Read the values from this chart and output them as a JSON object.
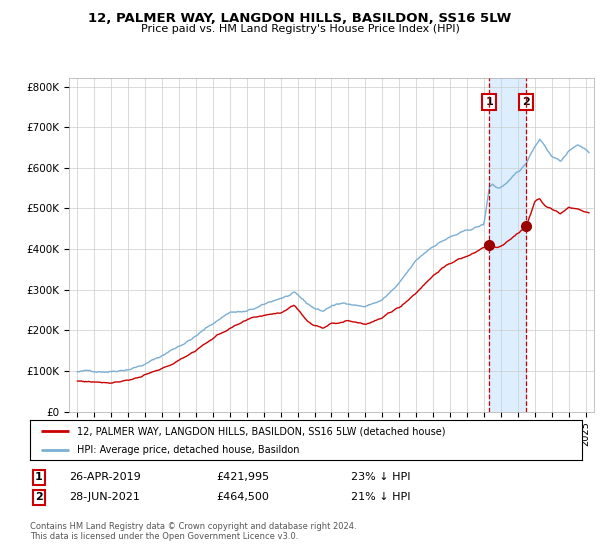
{
  "title": "12, PALMER WAY, LANGDON HILLS, BASILDON, SS16 5LW",
  "subtitle": "Price paid vs. HM Land Registry's House Price Index (HPI)",
  "legend_line1": "12, PALMER WAY, LANGDON HILLS, BASILDON, SS16 5LW (detached house)",
  "legend_line2": "HPI: Average price, detached house, Basildon",
  "annotation1_date": "26-APR-2019",
  "annotation1_price": "£421,995",
  "annotation1_hpi": "23% ↓ HPI",
  "annotation1_year": 2019.32,
  "annotation1_value": 421995,
  "annotation2_date": "28-JUN-2021",
  "annotation2_price": "£464,500",
  "annotation2_hpi": "21% ↓ HPI",
  "annotation2_year": 2021.49,
  "annotation2_value": 464500,
  "footer": "Contains HM Land Registry data © Crown copyright and database right 2024.\nThis data is licensed under the Open Government Licence v3.0.",
  "red_color": "#cc0000",
  "blue_color": "#7bafd4",
  "bg_shade_color": "#ddeeff",
  "ylim": [
    0,
    820000
  ],
  "yticks": [
    0,
    100000,
    200000,
    300000,
    400000,
    500000,
    600000,
    700000,
    800000
  ],
  "ytick_labels": [
    "£0",
    "£100K",
    "£200K",
    "£300K",
    "£400K",
    "£500K",
    "£600K",
    "£700K",
    "£800K"
  ],
  "xlim": [
    1994.5,
    2025.5
  ],
  "year_start": 1995,
  "year_end": 2025
}
